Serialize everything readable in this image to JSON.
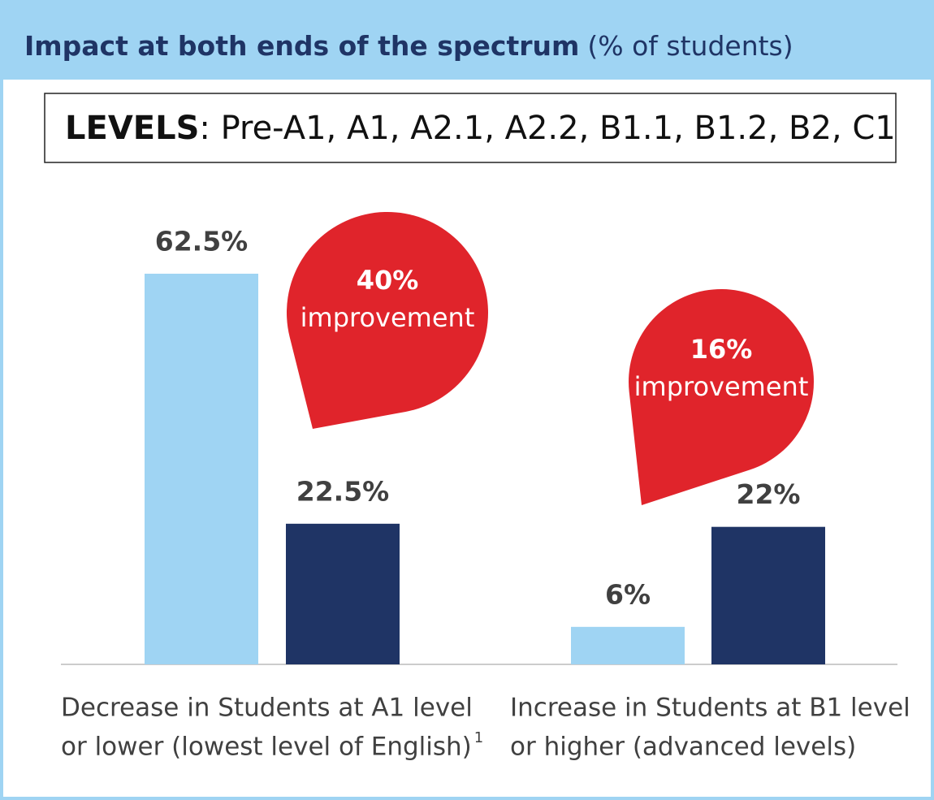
{
  "chart_data": {
    "type": "bar",
    "title": "Impact at both ends of the spectrum",
    "subtitle": "(% of students)",
    "levels_label": "LEVELS",
    "levels_text": ": Pre-A1, A1, A2.1, A2.2, B1.1, B1.2, B2, C1",
    "categories": [
      [
        "Decrease in Students at A1 level",
        "or lower (lowest level of English)"
      ],
      [
        "Increase in Students at B1 level",
        "or higher (advanced levels)"
      ]
    ],
    "footnote": "1",
    "series": [
      {
        "color": "#9fd4f3",
        "values": [
          62.5,
          6
        ],
        "value_labels": [
          "62.5%",
          "6%"
        ]
      },
      {
        "color": "#1f3465",
        "values": [
          22.5,
          22
        ],
        "value_labels": [
          "22.5%",
          "22%"
        ]
      }
    ],
    "annotations": [
      {
        "value": "40%",
        "text": "improvement"
      },
      {
        "value": "16%",
        "text": "improvement"
      }
    ],
    "annotation_color": "#e0242b"
  }
}
